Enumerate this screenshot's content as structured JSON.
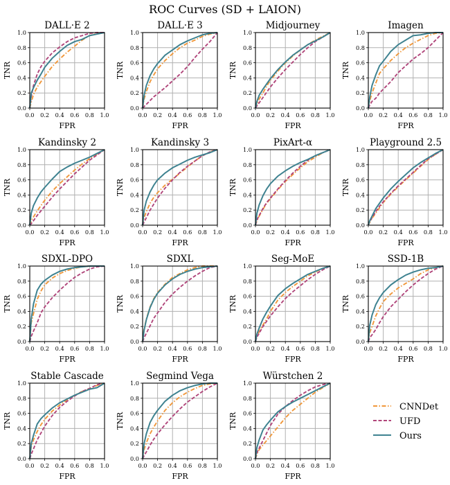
{
  "chart_data": {
    "type": "line",
    "title": "ROC Curves (SD + LAION)",
    "xlabel": "FPR",
    "ylabel": "TNR",
    "xlim": [
      0.0,
      1.0
    ],
    "ylim": [
      0.0,
      1.0
    ],
    "xticks": [
      "0.0",
      "0.2",
      "0.4",
      "0.6",
      "0.8",
      "1.0"
    ],
    "yticks": [
      "0.0",
      "0.2",
      "0.4",
      "0.6",
      "0.8",
      "1.0"
    ],
    "grid": true,
    "legend": {
      "placement": "bottom-right",
      "entries": [
        {
          "name": "CNNDet",
          "color": "#f0973a",
          "style": "dashdot"
        },
        {
          "name": "UFD",
          "color": "#b0457a",
          "style": "dashed"
        },
        {
          "name": "Ours",
          "color": "#3e8290",
          "style": "solid"
        }
      ]
    },
    "x": [
      0.0,
      0.02,
      0.05,
      0.1,
      0.15,
      0.2,
      0.3,
      0.4,
      0.5,
      0.6,
      0.7,
      0.8,
      0.9,
      1.0
    ],
    "panels": [
      {
        "title": "DALL·E 2",
        "series": [
          {
            "name": "CNNDet",
            "values": [
              0.0,
              0.08,
              0.18,
              0.28,
              0.35,
              0.42,
              0.55,
              0.65,
              0.74,
              0.82,
              0.9,
              0.96,
              0.99,
              1.0
            ]
          },
          {
            "name": "UFD",
            "values": [
              0.0,
              0.15,
              0.3,
              0.45,
              0.55,
              0.62,
              0.73,
              0.81,
              0.88,
              0.93,
              0.96,
              0.99,
              1.0,
              1.0
            ]
          },
          {
            "name": "Ours",
            "values": [
              0.0,
              0.2,
              0.27,
              0.37,
              0.45,
              0.54,
              0.66,
              0.75,
              0.83,
              0.88,
              0.91,
              0.96,
              0.98,
              1.0
            ]
          }
        ]
      },
      {
        "title": "DALL·E 3",
        "series": [
          {
            "name": "CNNDet",
            "values": [
              0.0,
              0.12,
              0.22,
              0.35,
              0.44,
              0.52,
              0.63,
              0.72,
              0.8,
              0.86,
              0.9,
              0.95,
              0.98,
              1.0
            ]
          },
          {
            "name": "UFD",
            "values": [
              0.0,
              0.02,
              0.05,
              0.1,
              0.15,
              0.19,
              0.27,
              0.36,
              0.45,
              0.55,
              0.67,
              0.78,
              0.88,
              1.0
            ]
          },
          {
            "name": "Ours",
            "values": [
              0.0,
              0.17,
              0.3,
              0.43,
              0.52,
              0.59,
              0.7,
              0.77,
              0.84,
              0.89,
              0.93,
              0.97,
              0.99,
              1.0
            ]
          }
        ]
      },
      {
        "title": "Midjourney",
        "series": [
          {
            "name": "CNNDet",
            "values": [
              0.0,
              0.05,
              0.12,
              0.2,
              0.29,
              0.37,
              0.49,
              0.6,
              0.69,
              0.77,
              0.84,
              0.9,
              0.95,
              1.0
            ]
          },
          {
            "name": "UFD",
            "values": [
              0.0,
              0.03,
              0.07,
              0.14,
              0.21,
              0.28,
              0.4,
              0.51,
              0.61,
              0.71,
              0.8,
              0.88,
              0.94,
              1.0
            ]
          },
          {
            "name": "Ours",
            "values": [
              0.0,
              0.09,
              0.17,
              0.25,
              0.32,
              0.39,
              0.51,
              0.61,
              0.7,
              0.77,
              0.84,
              0.89,
              0.94,
              1.0
            ]
          }
        ]
      },
      {
        "title": "Imagen",
        "series": [
          {
            "name": "CNNDet",
            "values": [
              0.0,
              0.1,
              0.2,
              0.33,
              0.46,
              0.52,
              0.63,
              0.72,
              0.8,
              0.86,
              0.91,
              0.96,
              0.99,
              1.0
            ]
          },
          {
            "name": "UFD",
            "values": [
              0.0,
              0.04,
              0.09,
              0.13,
              0.2,
              0.25,
              0.35,
              0.47,
              0.56,
              0.65,
              0.72,
              0.8,
              0.9,
              1.0
            ]
          },
          {
            "name": "Ours",
            "values": [
              0.0,
              0.15,
              0.3,
              0.44,
              0.56,
              0.62,
              0.75,
              0.84,
              0.9,
              0.96,
              0.97,
              0.99,
              1.0,
              1.0
            ]
          }
        ]
      },
      {
        "title": "Kandinsky 2",
        "series": [
          {
            "name": "CNNDet",
            "values": [
              0.0,
              0.06,
              0.11,
              0.19,
              0.26,
              0.33,
              0.45,
              0.55,
              0.64,
              0.73,
              0.81,
              0.88,
              0.94,
              1.0
            ]
          },
          {
            "name": "UFD",
            "values": [
              0.0,
              0.02,
              0.06,
              0.13,
              0.19,
              0.25,
              0.37,
              0.48,
              0.58,
              0.68,
              0.77,
              0.86,
              0.93,
              1.0
            ]
          },
          {
            "name": "Ours",
            "values": [
              0.0,
              0.16,
              0.26,
              0.36,
              0.44,
              0.5,
              0.61,
              0.71,
              0.77,
              0.82,
              0.86,
              0.9,
              0.95,
              1.0
            ]
          }
        ]
      },
      {
        "title": "Kandinsky 3",
        "series": [
          {
            "name": "CNNDet",
            "values": [
              0.0,
              0.1,
              0.18,
              0.29,
              0.37,
              0.43,
              0.53,
              0.61,
              0.69,
              0.77,
              0.85,
              0.92,
              0.97,
              1.0
            ]
          },
          {
            "name": "UFD",
            "values": [
              0.0,
              0.04,
              0.1,
              0.2,
              0.28,
              0.36,
              0.49,
              0.6,
              0.7,
              0.78,
              0.85,
              0.92,
              0.97,
              1.0
            ]
          },
          {
            "name": "Ours",
            "values": [
              0.0,
              0.2,
              0.32,
              0.44,
              0.53,
              0.6,
              0.69,
              0.76,
              0.81,
              0.86,
              0.9,
              0.93,
              0.96,
              1.0
            ]
          }
        ]
      },
      {
        "title": "PixArt-α",
        "series": [
          {
            "name": "CNNDet",
            "values": [
              0.0,
              0.06,
              0.12,
              0.21,
              0.29,
              0.35,
              0.47,
              0.58,
              0.67,
              0.76,
              0.84,
              0.9,
              0.96,
              1.0
            ]
          },
          {
            "name": "UFD",
            "values": [
              0.0,
              0.07,
              0.13,
              0.22,
              0.3,
              0.36,
              0.48,
              0.59,
              0.69,
              0.78,
              0.86,
              0.92,
              0.96,
              1.0
            ]
          },
          {
            "name": "Ours",
            "values": [
              0.0,
              0.16,
              0.27,
              0.39,
              0.48,
              0.55,
              0.65,
              0.72,
              0.78,
              0.83,
              0.87,
              0.92,
              0.96,
              1.0
            ]
          }
        ]
      },
      {
        "title": "Playground 2.5",
        "series": [
          {
            "name": "CNNDet",
            "values": [
              0.0,
              0.04,
              0.09,
              0.16,
              0.23,
              0.3,
              0.41,
              0.51,
              0.6,
              0.69,
              0.78,
              0.87,
              0.94,
              1.0
            ]
          },
          {
            "name": "UFD",
            "values": [
              0.0,
              0.05,
              0.1,
              0.18,
              0.25,
              0.31,
              0.42,
              0.52,
              0.61,
              0.7,
              0.79,
              0.88,
              0.94,
              1.0
            ]
          },
          {
            "name": "Ours",
            "values": [
              0.0,
              0.06,
              0.12,
              0.22,
              0.29,
              0.36,
              0.48,
              0.58,
              0.67,
              0.76,
              0.83,
              0.89,
              0.95,
              1.0
            ]
          }
        ]
      },
      {
        "title": "SDXL-DPO",
        "series": [
          {
            "name": "CNNDet",
            "values": [
              0.0,
              0.25,
              0.37,
              0.56,
              0.67,
              0.75,
              0.84,
              0.9,
              0.94,
              0.97,
              0.99,
              1.0,
              1.0,
              1.0
            ]
          },
          {
            "name": "UFD",
            "values": [
              0.0,
              0.07,
              0.14,
              0.25,
              0.38,
              0.46,
              0.58,
              0.68,
              0.77,
              0.85,
              0.91,
              0.96,
              0.99,
              1.0
            ]
          },
          {
            "name": "Ours",
            "values": [
              0.0,
              0.3,
              0.5,
              0.68,
              0.76,
              0.81,
              0.88,
              0.93,
              0.96,
              0.98,
              0.99,
              1.0,
              1.0,
              1.0
            ]
          }
        ]
      },
      {
        "title": "SDXL",
        "series": [
          {
            "name": "CNNDet",
            "values": [
              0.0,
              0.17,
              0.3,
              0.46,
              0.57,
              0.65,
              0.76,
              0.85,
              0.9,
              0.95,
              0.98,
              1.0,
              1.0,
              1.0
            ]
          },
          {
            "name": "UFD",
            "values": [
              0.0,
              0.05,
              0.11,
              0.21,
              0.31,
              0.38,
              0.52,
              0.63,
              0.72,
              0.8,
              0.87,
              0.93,
              0.98,
              1.0
            ]
          },
          {
            "name": "Ours",
            "values": [
              0.0,
              0.15,
              0.29,
              0.45,
              0.56,
              0.64,
              0.75,
              0.83,
              0.89,
              0.93,
              0.96,
              0.98,
              0.99,
              1.0
            ]
          }
        ]
      },
      {
        "title": "Seg-MoE",
        "series": [
          {
            "name": "CNNDet",
            "values": [
              0.0,
              0.07,
              0.13,
              0.22,
              0.3,
              0.4,
              0.55,
              0.65,
              0.73,
              0.8,
              0.87,
              0.92,
              0.97,
              1.0
            ]
          },
          {
            "name": "UFD",
            "values": [
              0.0,
              0.06,
              0.11,
              0.2,
              0.27,
              0.34,
              0.46,
              0.57,
              0.66,
              0.74,
              0.82,
              0.89,
              0.95,
              1.0
            ]
          },
          {
            "name": "Ours",
            "values": [
              0.0,
              0.1,
              0.18,
              0.3,
              0.39,
              0.47,
              0.61,
              0.7,
              0.77,
              0.83,
              0.89,
              0.93,
              0.97,
              1.0
            ]
          }
        ]
      },
      {
        "title": "SSD-1B",
        "series": [
          {
            "name": "CNNDet",
            "values": [
              0.0,
              0.12,
              0.2,
              0.34,
              0.44,
              0.53,
              0.63,
              0.71,
              0.77,
              0.83,
              0.9,
              0.95,
              0.98,
              1.0
            ]
          },
          {
            "name": "UFD",
            "values": [
              0.0,
              0.05,
              0.09,
              0.16,
              0.25,
              0.33,
              0.46,
              0.56,
              0.66,
              0.75,
              0.83,
              0.9,
              0.96,
              1.0
            ]
          },
          {
            "name": "Ours",
            "values": [
              0.0,
              0.22,
              0.35,
              0.49,
              0.58,
              0.65,
              0.75,
              0.82,
              0.88,
              0.92,
              0.95,
              0.97,
              0.98,
              1.0
            ]
          }
        ]
      },
      {
        "title": "Stable Cascade",
        "series": [
          {
            "name": "CNNDet",
            "values": [
              0.0,
              0.16,
              0.25,
              0.36,
              0.45,
              0.52,
              0.63,
              0.71,
              0.78,
              0.84,
              0.89,
              0.93,
              0.97,
              1.0
            ]
          },
          {
            "name": "UFD",
            "values": [
              0.0,
              0.06,
              0.13,
              0.25,
              0.34,
              0.43,
              0.57,
              0.68,
              0.76,
              0.83,
              0.89,
              0.93,
              0.98,
              1.0
            ]
          },
          {
            "name": "Ours",
            "values": [
              0.0,
              0.2,
              0.31,
              0.46,
              0.53,
              0.58,
              0.67,
              0.74,
              0.79,
              0.84,
              0.88,
              0.92,
              0.94,
              1.0
            ]
          }
        ]
      },
      {
        "title": "Segmind Vega",
        "series": [
          {
            "name": "CNNDet",
            "values": [
              0.0,
              0.12,
              0.21,
              0.33,
              0.42,
              0.5,
              0.64,
              0.74,
              0.82,
              0.88,
              0.93,
              0.97,
              0.99,
              1.0
            ]
          },
          {
            "name": "UFD",
            "values": [
              0.0,
              0.04,
              0.09,
              0.18,
              0.26,
              0.33,
              0.45,
              0.56,
              0.66,
              0.75,
              0.82,
              0.89,
              0.95,
              1.0
            ]
          },
          {
            "name": "Ours",
            "values": [
              0.0,
              0.2,
              0.33,
              0.48,
              0.57,
              0.64,
              0.76,
              0.84,
              0.9,
              0.94,
              0.97,
              0.99,
              1.0,
              1.0
            ]
          }
        ]
      },
      {
        "title": "Würstchen 2",
        "series": [
          {
            "name": "CNNDet",
            "values": [
              0.0,
              0.06,
              0.12,
              0.18,
              0.24,
              0.3,
              0.42,
              0.54,
              0.64,
              0.72,
              0.8,
              0.88,
              0.94,
              1.0
            ]
          },
          {
            "name": "UFD",
            "values": [
              0.0,
              0.08,
              0.14,
              0.24,
              0.34,
              0.44,
              0.59,
              0.69,
              0.77,
              0.84,
              0.9,
              0.95,
              0.98,
              1.0
            ]
          },
          {
            "name": "Ours",
            "values": [
              0.0,
              0.15,
              0.25,
              0.38,
              0.45,
              0.51,
              0.62,
              0.69,
              0.75,
              0.8,
              0.85,
              0.9,
              0.95,
              1.0
            ]
          }
        ]
      }
    ]
  }
}
